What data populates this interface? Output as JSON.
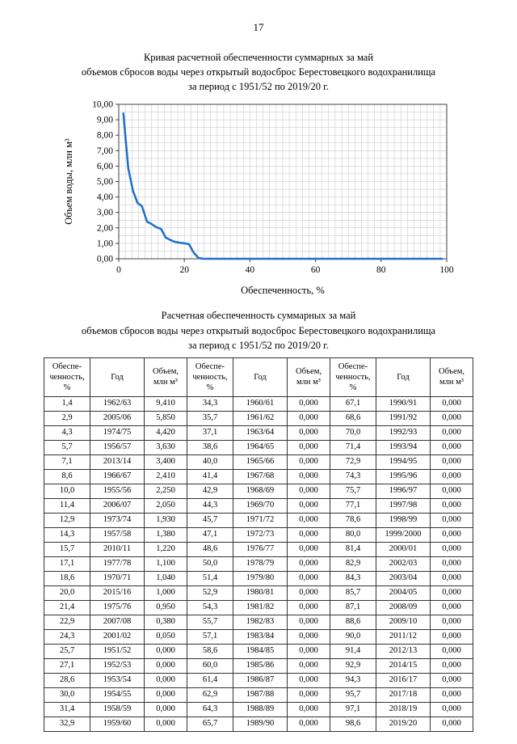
{
  "page": {
    "number": "17"
  },
  "chart": {
    "title_lines": [
      "Кривая расчетной обеспеченности суммарных за май",
      "объемов сбросов воды через открытый водосброс Берестовецкого водохранилища",
      "за период с 1951/52 по 2019/20 г."
    ]
  },
  "chart_data": {
    "type": "line",
    "title": "Кривая расчетной обеспеченности суммарных за май объемов сбросов воды через открытый водосброс Берестовецкого водохранилища за период с 1951/52 по 2019/20 г.",
    "xlabel": "Обеспеченность, %",
    "ylabel": "Объем воды, млн м³",
    "xlim": [
      0,
      100
    ],
    "ylim": [
      0,
      10
    ],
    "x_ticks": [
      0,
      20,
      40,
      60,
      80,
      100
    ],
    "y_tick_step": 1,
    "grid": true,
    "line_color": "#1e6ec8",
    "x": [
      1.4,
      2.9,
      4.3,
      5.7,
      7.1,
      8.6,
      10.0,
      11.4,
      12.9,
      14.3,
      15.7,
      17.1,
      18.6,
      20.0,
      21.4,
      22.9,
      24.3,
      25.7,
      27.1,
      28.6,
      30.0,
      31.4,
      32.9,
      34.3,
      35.7,
      37.1,
      38.6,
      40.0,
      41.4,
      42.9,
      44.3,
      45.7,
      47.1,
      48.6,
      50.0,
      51.4,
      52.9,
      54.3,
      55.7,
      57.1,
      58.6,
      60.0,
      61.4,
      62.9,
      64.3,
      65.7,
      67.1,
      68.6,
      70.0,
      71.4,
      72.9,
      74.3,
      75.7,
      77.1,
      78.6,
      80.0,
      81.4,
      82.9,
      84.3,
      85.7,
      87.1,
      88.6,
      90.0,
      91.4,
      92.9,
      94.3,
      95.7,
      97.1,
      98.6
    ],
    "y": [
      9.41,
      5.85,
      4.42,
      3.63,
      3.4,
      2.41,
      2.25,
      2.05,
      1.93,
      1.38,
      1.22,
      1.1,
      1.04,
      1.0,
      0.95,
      0.38,
      0.05,
      0,
      0,
      0,
      0,
      0,
      0,
      0,
      0,
      0,
      0,
      0,
      0,
      0,
      0,
      0,
      0,
      0,
      0,
      0,
      0,
      0,
      0,
      0,
      0,
      0,
      0,
      0,
      0,
      0,
      0,
      0,
      0,
      0,
      0,
      0,
      0,
      0,
      0,
      0,
      0,
      0,
      0,
      0,
      0,
      0,
      0,
      0,
      0,
      0,
      0,
      0,
      0
    ]
  },
  "table": {
    "title_lines": [
      "Расчетная обеспеченность суммарных за май",
      "объемов сбросов воды через открытый водосброс Берестовецкого водохранилища",
      "за период с 1951/52 по 2019/20 г."
    ],
    "header_group": [
      {
        "lines": [
          "Обеспе-",
          "ченность,",
          "%"
        ]
      },
      {
        "lines": [
          "Год"
        ]
      },
      {
        "lines": [
          "Объем,",
          "млн м³"
        ]
      }
    ],
    "group_count": 3,
    "rows": [
      [
        "1,4",
        "1962/63",
        "9,410",
        "34,3",
        "1960/61",
        "0,000",
        "67,1",
        "1990/91",
        "0,000"
      ],
      [
        "2,9",
        "2005/06",
        "5,850",
        "35,7",
        "1961/62",
        "0,000",
        "68,6",
        "1991/92",
        "0,000"
      ],
      [
        "4,3",
        "1974/75",
        "4,420",
        "37,1",
        "1963/64",
        "0,000",
        "70,0",
        "1992/93",
        "0,000"
      ],
      [
        "5,7",
        "1956/57",
        "3,630",
        "38,6",
        "1964/65",
        "0,000",
        "71,4",
        "1993/94",
        "0,000"
      ],
      [
        "7,1",
        "2013/14",
        "3,400",
        "40,0",
        "1965/66",
        "0,000",
        "72,9",
        "1994/95",
        "0,000"
      ],
      [
        "8,6",
        "1966/67",
        "2,410",
        "41,4",
        "1967/68",
        "0,000",
        "74,3",
        "1995/96",
        "0,000"
      ],
      [
        "10,0",
        "1955/56",
        "2,250",
        "42,9",
        "1968/69",
        "0,000",
        "75,7",
        "1996/97",
        "0,000"
      ],
      [
        "11,4",
        "2006/07",
        "2,050",
        "44,3",
        "1969/70",
        "0,000",
        "77,1",
        "1997/98",
        "0,000"
      ],
      [
        "12,9",
        "1973/74",
        "1,930",
        "45,7",
        "1971/72",
        "0,000",
        "78,6",
        "1998/99",
        "0,000"
      ],
      [
        "14,3",
        "1957/58",
        "1,380",
        "47,1",
        "1972/73",
        "0,000",
        "80,0",
        "1999/2000",
        "0,000"
      ],
      [
        "15,7",
        "2010/11",
        "1,220",
        "48,6",
        "1976/77",
        "0,000",
        "81,4",
        "2000/01",
        "0,000"
      ],
      [
        "17,1",
        "1977/78",
        "1,100",
        "50,0",
        "1978/79",
        "0,000",
        "82,9",
        "2002/03",
        "0,000"
      ],
      [
        "18,6",
        "1970/71",
        "1,040",
        "51,4",
        "1979/80",
        "0,000",
        "84,3",
        "2003/04",
        "0,000"
      ],
      [
        "20,0",
        "2015/16",
        "1,000",
        "52,9",
        "1980/81",
        "0,000",
        "85,7",
        "2004/05",
        "0,000"
      ],
      [
        "21,4",
        "1975/76",
        "0,950",
        "54,3",
        "1981/82",
        "0,000",
        "87,1",
        "2008/09",
        "0,000"
      ],
      [
        "22,9",
        "2007/08",
        "0,380",
        "55,7",
        "1982/83",
        "0,000",
        "88,6",
        "2009/10",
        "0,000"
      ],
      [
        "24,3",
        "2001/02",
        "0,050",
        "57,1",
        "1983/84",
        "0,000",
        "90,0",
        "2011/12",
        "0,000"
      ],
      [
        "25,7",
        "1951/52",
        "0,000",
        "58,6",
        "1984/85",
        "0,000",
        "91,4",
        "2012/13",
        "0,000"
      ],
      [
        "27,1",
        "1952/53",
        "0,000",
        "60,0",
        "1985/86",
        "0,000",
        "92,9",
        "2014/15",
        "0,000"
      ],
      [
        "28,6",
        "1953/54",
        "0,000",
        "61,4",
        "1986/87",
        "0,000",
        "94,3",
        "2016/17",
        "0,000"
      ],
      [
        "30,0",
        "1954/55",
        "0,000",
        "62,9",
        "1987/88",
        "0,000",
        "95,7",
        "2017/18",
        "0,000"
      ],
      [
        "31,4",
        "1958/59",
        "0,000",
        "64,3",
        "1988/89",
        "0,000",
        "97,1",
        "2018/19",
        "0,000"
      ],
      [
        "32,9",
        "1959/60",
        "0,000",
        "65,7",
        "1989/90",
        "0,000",
        "98,6",
        "2019/20",
        "0,000"
      ]
    ]
  }
}
